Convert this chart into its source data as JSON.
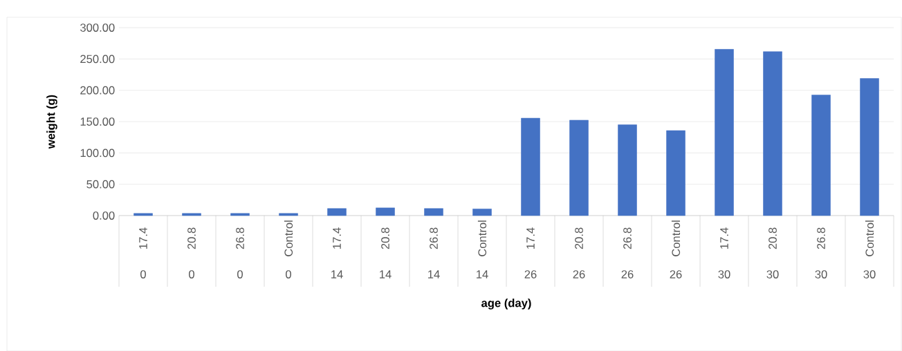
{
  "chart_data": {
    "type": "bar",
    "xlabel": "age (day)",
    "ylabel": "weight (g)",
    "categories": [
      "17.4",
      "20.8",
      "26.8",
      "Control",
      "17.4",
      "20.8",
      "26.8",
      "Control",
      "17.4",
      "20.8",
      "26.8",
      "Control",
      "17.4",
      "20.8",
      "26.8",
      "Control"
    ],
    "annotations": [
      "0",
      "0",
      "0",
      "0",
      "14",
      "14",
      "14",
      "14",
      "26",
      "26",
      "26",
      "26",
      "30",
      "30",
      "30",
      "30"
    ],
    "values": [
      3.5,
      3.5,
      3.5,
      3.5,
      11.3,
      12.3,
      11.3,
      10.6,
      155.5,
      152.3,
      144.9,
      135.7,
      265.4,
      261.7,
      192.5,
      218.8
    ],
    "color": "#4472c4",
    "ylim": [
      0,
      300
    ],
    "yticks": [
      {
        "value": 0,
        "label": "0.00"
      },
      {
        "value": 50,
        "label": "50.00"
      },
      {
        "value": 100,
        "label": "100.00"
      },
      {
        "value": 150,
        "label": "150.00"
      },
      {
        "value": 200,
        "label": "200.00"
      },
      {
        "value": 250,
        "label": "250.00"
      },
      {
        "value": 300,
        "label": "300.00"
      }
    ],
    "grid": "y"
  }
}
